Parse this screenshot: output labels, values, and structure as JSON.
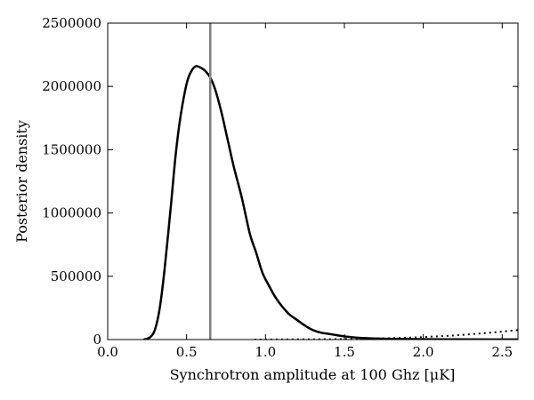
{
  "chart_data": {
    "type": "line",
    "title": "",
    "xlabel": "Synchrotron amplitude at 100 Ghz [μK]",
    "ylabel": "Posterior density",
    "xlim": [
      0.0,
      2.6
    ],
    "ylim": [
      0,
      2500000
    ],
    "x_ticks": [
      0.0,
      0.5,
      1.0,
      1.5,
      2.0,
      2.5
    ],
    "x_tick_labels": [
      "0.0",
      "0.5",
      "1.0",
      "1.5",
      "2.0",
      "2.5"
    ],
    "y_ticks": [
      0,
      500000,
      1000000,
      1500000,
      2000000,
      2500000
    ],
    "y_tick_labels": [
      "0",
      "500000",
      "1000000",
      "1500000",
      "2000000",
      "2500000"
    ],
    "grid": false,
    "vertical_line": {
      "x": 0.65,
      "color": "#808080"
    },
    "series": [
      {
        "style": "solid",
        "color": "#000000",
        "x": [
          0.23,
          0.27,
          0.3,
          0.33,
          0.36,
          0.4,
          0.43,
          0.46,
          0.5,
          0.53,
          0.56,
          0.6,
          0.62,
          0.65,
          0.68,
          0.72,
          0.76,
          0.8,
          0.85,
          0.9,
          0.94,
          0.98,
          1.02,
          1.06,
          1.1,
          1.15,
          1.2,
          1.25,
          1.3,
          1.35,
          1.4,
          1.45,
          1.5,
          1.6,
          1.7,
          1.8,
          2.0,
          2.2,
          2.4,
          2.6
        ],
        "y": [
          0,
          20000,
          80000,
          250000,
          550000,
          1050000,
          1450000,
          1750000,
          2020000,
          2120000,
          2160000,
          2140000,
          2120000,
          2070000,
          1980000,
          1800000,
          1580000,
          1360000,
          1120000,
          840000,
          690000,
          530000,
          430000,
          340000,
          270000,
          200000,
          155000,
          110000,
          75000,
          55000,
          45000,
          35000,
          25000,
          13000,
          8000,
          5000,
          3000,
          2000,
          1000,
          500
        ]
      },
      {
        "style": "dotted",
        "color": "#000000",
        "x": [
          0.93,
          1.1,
          1.3,
          1.5,
          1.7,
          1.9,
          2.0,
          2.1,
          2.2,
          2.3,
          2.4,
          2.5,
          2.6
        ],
        "y": [
          0,
          1000,
          2000,
          4000,
          8000,
          15000,
          20000,
          26000,
          33000,
          42000,
          52000,
          63000,
          75000
        ]
      }
    ]
  }
}
